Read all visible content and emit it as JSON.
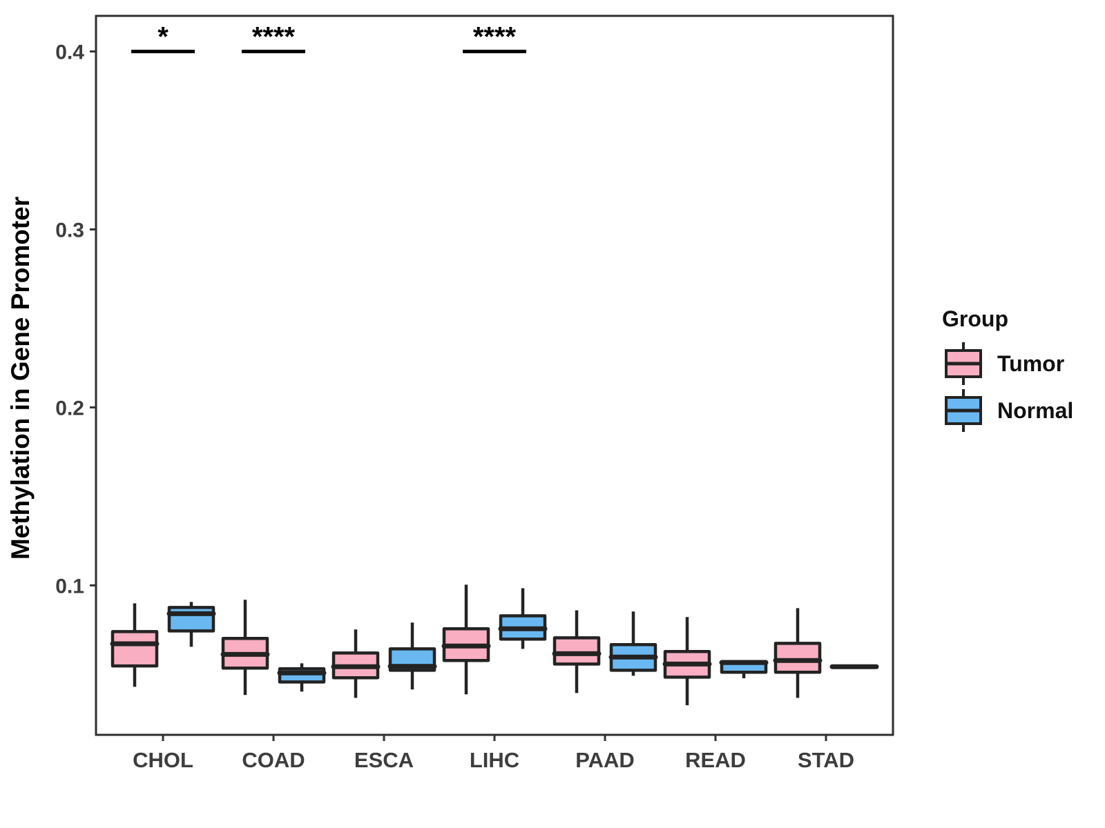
{
  "figure": {
    "background": "#ffffff"
  },
  "colors": {
    "tumor_fill": "#F9AFC1",
    "normal_fill": "#69B8F1",
    "box_stroke": "#232323",
    "panel_border": "#2e2e2e",
    "tick_text": "#3d3d3d",
    "annotation_text": "#000000"
  },
  "legend": {
    "title": "Group",
    "entries": [
      {
        "label": "Tumor",
        "fill_key": "tumor_fill"
      },
      {
        "label": "Normal",
        "fill_key": "normal_fill"
      }
    ]
  },
  "chart_data": {
    "type": "grouped_boxplot",
    "title": "",
    "xlabel": "",
    "ylabel": "Methylation in Gene Promoter",
    "categories": [
      "CHOL",
      "COAD",
      "ESCA",
      "LIHC",
      "PAAD",
      "READ",
      "STAD"
    ],
    "ylim": [
      0.016,
      0.42
    ],
    "yticks": [
      0.1,
      0.2,
      0.3,
      0.4
    ],
    "ytick_labels": [
      "0.1",
      "0.2",
      "0.3",
      "0.4"
    ],
    "grid": false,
    "legend_position": "right",
    "series": [
      {
        "name": "Tumor",
        "fill_key": "tumor_fill",
        "boxes": [
          {
            "category": "CHOL",
            "whisker_low": 0.043,
            "q1": 0.0547,
            "median": 0.0672,
            "q3": 0.074,
            "whisker_high": 0.0899
          },
          {
            "category": "COAD",
            "whisker_low": 0.0384,
            "q1": 0.0535,
            "median": 0.0612,
            "q3": 0.0702,
            "whisker_high": 0.0919
          },
          {
            "category": "ESCA",
            "whisker_low": 0.0368,
            "q1": 0.0481,
            "median": 0.0543,
            "q3": 0.062,
            "whisker_high": 0.0752
          },
          {
            "category": "LIHC",
            "whisker_low": 0.0388,
            "q1": 0.0578,
            "median": 0.0659,
            "q3": 0.0756,
            "whisker_high": 0.1004
          },
          {
            "category": "PAAD",
            "whisker_low": 0.0395,
            "q1": 0.0558,
            "median": 0.0616,
            "q3": 0.0705,
            "whisker_high": 0.086
          },
          {
            "category": "READ",
            "whisker_low": 0.0326,
            "q1": 0.0484,
            "median": 0.0558,
            "q3": 0.0628,
            "whisker_high": 0.0822
          },
          {
            "category": "STAD",
            "whisker_low": 0.0368,
            "q1": 0.0512,
            "median": 0.0578,
            "q3": 0.0674,
            "whisker_high": 0.0872
          }
        ]
      },
      {
        "name": "Normal",
        "fill_key": "normal_fill",
        "boxes": [
          {
            "category": "CHOL",
            "whisker_low": 0.0655,
            "q1": 0.0744,
            "median": 0.0841,
            "q3": 0.0876,
            "whisker_high": 0.0907
          },
          {
            "category": "COAD",
            "whisker_low": 0.0403,
            "q1": 0.0457,
            "median": 0.0508,
            "q3": 0.0531,
            "whisker_high": 0.0562
          },
          {
            "category": "ESCA",
            "whisker_low": 0.0415,
            "q1": 0.0523,
            "median": 0.0545,
            "q3": 0.0643,
            "whisker_high": 0.0791
          },
          {
            "category": "LIHC",
            "whisker_low": 0.0643,
            "q1": 0.0698,
            "median": 0.0756,
            "q3": 0.0829,
            "whisker_high": 0.0984
          },
          {
            "category": "PAAD",
            "whisker_low": 0.0492,
            "q1": 0.0523,
            "median": 0.0597,
            "q3": 0.0667,
            "whisker_high": 0.0853
          },
          {
            "category": "READ",
            "whisker_low": 0.0478,
            "q1": 0.0512,
            "median": 0.0566,
            "q3": 0.0572,
            "whisker_high": 0.0572
          },
          {
            "category": "STAD",
            "whisker_low": 0.0543,
            "q1": 0.0543,
            "median": 0.0543,
            "q3": 0.0543,
            "whisker_high": 0.0543
          }
        ]
      }
    ],
    "annotations": [
      {
        "category": "CHOL",
        "label": "*",
        "y": 0.4
      },
      {
        "category": "COAD",
        "label": "****",
        "y": 0.4
      },
      {
        "category": "LIHC",
        "label": "****",
        "y": 0.4
      }
    ]
  }
}
